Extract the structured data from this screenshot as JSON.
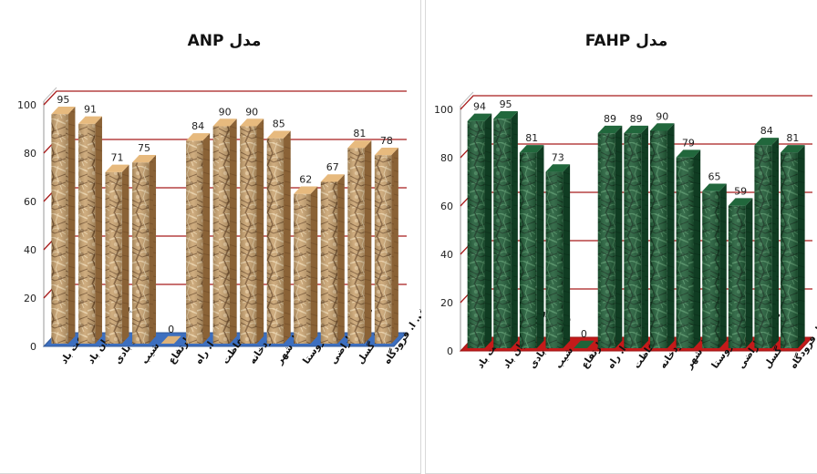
{
  "chart_data": [
    {
      "type": "bar",
      "title": "مدل ANP",
      "xlabel": "",
      "ylabel": "",
      "ylim": [
        0,
        100
      ],
      "yticks": [
        0,
        20,
        40,
        60,
        80,
        100
      ],
      "grid": true,
      "bar_fill": "crumpled-paper tan",
      "floor_color": "#3d6fbf",
      "gridline_color": "#a81c1c",
      "categories": [
        "سرعت باد",
        "چگالی توان باد",
        "روز های بادی",
        "شیب",
        "ارتفاع",
        "ف. ا. راه",
        "ف. ا. حفاظت",
        "ف. ا. رودخانه",
        "ف. ا. شهر",
        "ف. ا. روستا",
        "کاربری اراضی",
        "ف. ا. گسل",
        "ف. ا. فرودگاه"
      ],
      "values": [
        95,
        91,
        71,
        75,
        0,
        84,
        90,
        90,
        85,
        62,
        67,
        81,
        78
      ]
    },
    {
      "type": "bar",
      "title": "مدل FAHP",
      "xlabel": "",
      "ylabel": "",
      "ylim": [
        0,
        100
      ],
      "yticks": [
        0,
        20,
        40,
        60,
        80,
        100
      ],
      "grid": true,
      "bar_fill": "green marble",
      "floor_color": "#c41a1a",
      "gridline_color": "#a81c1c",
      "categories": [
        "سرعت باد",
        "چگالی توان باد",
        "روز های بادی",
        "شیب",
        "ارتفاع",
        "ف. ا. راه",
        "ف. ا. حفاظت",
        "ف. ا. رودخانه",
        "ف. ا. شهر",
        "ف. ا. روستا",
        "کاربری اراضی",
        "ف. ا. گسل",
        "ف. ا. فرودگاه"
      ],
      "values": [
        94,
        95,
        81,
        73,
        0,
        89,
        89,
        90,
        79,
        65,
        59,
        84,
        81
      ]
    }
  ]
}
